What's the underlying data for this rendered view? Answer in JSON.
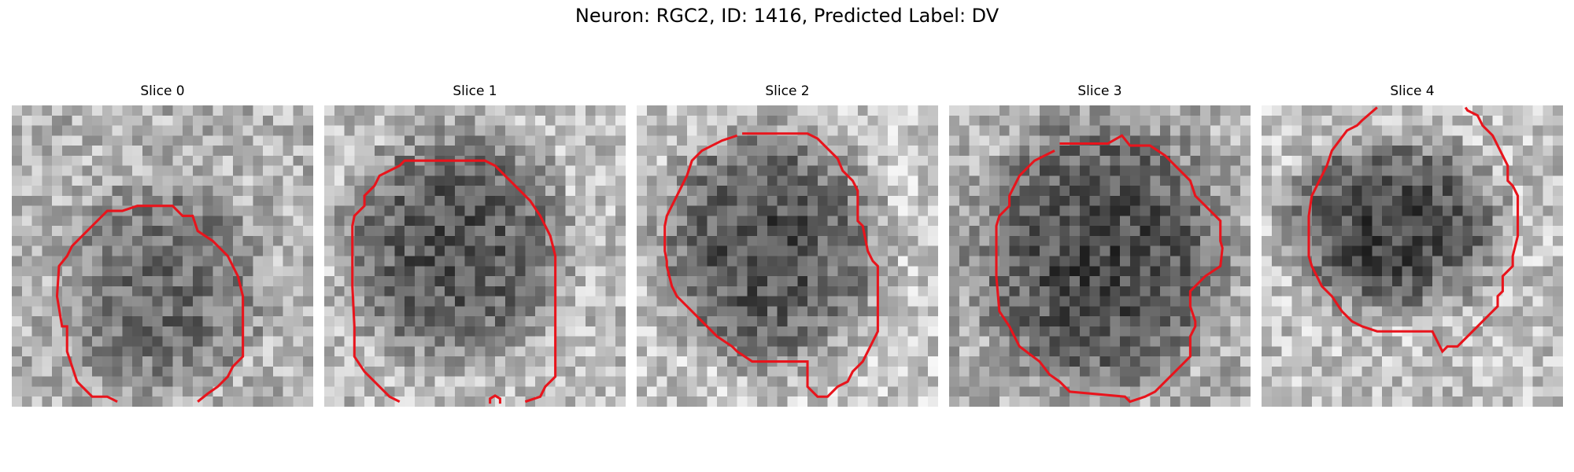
{
  "figure": {
    "title": "Neuron: RGC2, ID: 1416, Predicted Label: DV"
  },
  "slices": [
    {
      "label": "Slice 0"
    },
    {
      "label": "Slice 1"
    },
    {
      "label": "Slice 2"
    },
    {
      "label": "Slice 3"
    },
    {
      "label": "Slice 4"
    }
  ],
  "colors": {
    "contour": "#e8141c",
    "background": "#ffffff"
  }
}
